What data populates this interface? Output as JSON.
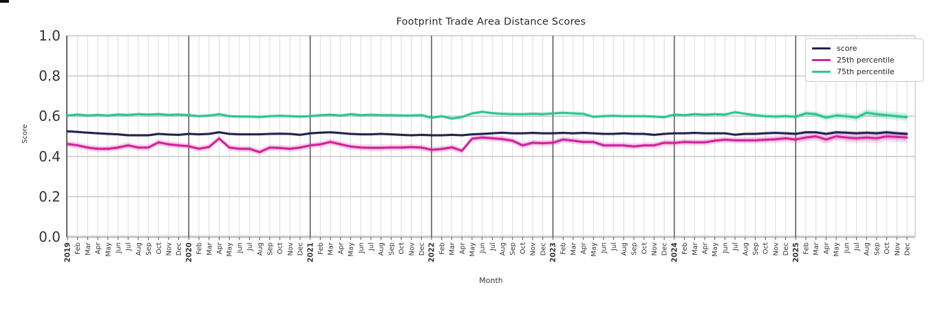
{
  "title": "Footprint Trade Area Distance Scores",
  "axes": {
    "ylabel": "Score",
    "xlabel": "Month"
  },
  "legend": {
    "position": "upper right",
    "items": [
      {
        "label": "score",
        "color": "#22224f"
      },
      {
        "label": "25th percentile",
        "color": "#d2219a"
      },
      {
        "label": "75th percentile",
        "color": "#2bc492"
      }
    ]
  },
  "chart_data": {
    "type": "line",
    "title": "Footprint Trade Area Distance Scores",
    "xlabel": "Month",
    "ylabel": "Score",
    "ylim": [
      0.0,
      1.0
    ],
    "yticks": [
      0.0,
      0.2,
      0.4,
      0.6,
      0.8,
      1.0
    ],
    "grid": true,
    "legend_position": "upper right",
    "year_line_indices": [
      12,
      24,
      36,
      48,
      60,
      72
    ],
    "x_labels": [
      "2019",
      "Feb",
      "Mar",
      "Apr",
      "May",
      "Jun",
      "Jul",
      "Aug",
      "Sep",
      "Oct",
      "Nov",
      "Dec",
      "2020",
      "Feb",
      "Mar",
      "Apr",
      "May",
      "Jun",
      "Jul",
      "Aug",
      "Sep",
      "Oct",
      "Nov",
      "Dec",
      "2021",
      "Feb",
      "Mar",
      "Apr",
      "May",
      "Jun",
      "Jul",
      "Aug",
      "Sep",
      "Oct",
      "Nov",
      "Dec",
      "2022",
      "Feb",
      "Mar",
      "Apr",
      "May",
      "Jun",
      "Jul",
      "Aug",
      "Sep",
      "Oct",
      "Nov",
      "Dec",
      "2023",
      "Feb",
      "Mar",
      "Apr",
      "May",
      "Jun",
      "Jul",
      "Aug",
      "Sep",
      "Oct",
      "Nov",
      "Dec",
      "2024",
      "Feb",
      "Mar",
      "Apr",
      "May",
      "Jun",
      "Jul",
      "Aug",
      "Sep",
      "Oct",
      "Nov",
      "Dec",
      "2025",
      "Feb",
      "Mar",
      "Apr",
      "May",
      "Jun",
      "Jul",
      "Aug",
      "Sep",
      "Oct",
      "Nov",
      "Dec"
    ],
    "series": [
      {
        "name": "score",
        "color": "#22224f",
        "band": {
          "base": 0.007,
          "end": 0.011,
          "widen_from": 66
        },
        "values": [
          0.525,
          0.522,
          0.518,
          0.515,
          0.512,
          0.51,
          0.505,
          0.505,
          0.505,
          0.512,
          0.509,
          0.507,
          0.512,
          0.51,
          0.512,
          0.52,
          0.512,
          0.51,
          0.51,
          0.51,
          0.512,
          0.513,
          0.512,
          0.507,
          0.515,
          0.518,
          0.52,
          0.516,
          0.512,
          0.51,
          0.51,
          0.512,
          0.51,
          0.507,
          0.505,
          0.507,
          0.505,
          0.505,
          0.507,
          0.505,
          0.51,
          0.512,
          0.515,
          0.518,
          0.515,
          0.515,
          0.517,
          0.515,
          0.515,
          0.517,
          0.515,
          0.517,
          0.515,
          0.512,
          0.512,
          0.515,
          0.512,
          0.512,
          0.507,
          0.512,
          0.515,
          0.515,
          0.517,
          0.515,
          0.515,
          0.515,
          0.508,
          0.512,
          0.512,
          0.515,
          0.517,
          0.515,
          0.512,
          0.52,
          0.52,
          0.512,
          0.52,
          0.518,
          0.515,
          0.518,
          0.515,
          0.52,
          0.515,
          0.512
        ]
      },
      {
        "name": "25th percentile",
        "color": "#d2219a",
        "band": {
          "base": 0.016,
          "end": 0.026,
          "widen_from": 66
        },
        "values": [
          0.462,
          0.455,
          0.444,
          0.438,
          0.438,
          0.444,
          0.455,
          0.444,
          0.444,
          0.47,
          0.46,
          0.455,
          0.451,
          0.438,
          0.447,
          0.489,
          0.444,
          0.438,
          0.438,
          0.421,
          0.444,
          0.442,
          0.438,
          0.444,
          0.455,
          0.46,
          0.472,
          0.46,
          0.449,
          0.444,
          0.443,
          0.443,
          0.444,
          0.444,
          0.446,
          0.444,
          0.433,
          0.437,
          0.445,
          0.428,
          0.488,
          0.494,
          0.49,
          0.486,
          0.478,
          0.455,
          0.468,
          0.466,
          0.468,
          0.484,
          0.478,
          0.472,
          0.472,
          0.455,
          0.455,
          0.455,
          0.45,
          0.455,
          0.455,
          0.468,
          0.467,
          0.472,
          0.47,
          0.47,
          0.478,
          0.483,
          0.48,
          0.48,
          0.48,
          0.483,
          0.485,
          0.49,
          0.484,
          0.494,
          0.5,
          0.484,
          0.5,
          0.494,
          0.49,
          0.494,
          0.49,
          0.5,
          0.497,
          0.494
        ]
      },
      {
        "name": "75th percentile",
        "color": "#2bc492",
        "band": {
          "base": 0.01,
          "end": 0.022,
          "widen_from": 66
        },
        "values": [
          0.603,
          0.608,
          0.603,
          0.606,
          0.603,
          0.608,
          0.606,
          0.61,
          0.608,
          0.61,
          0.606,
          0.608,
          0.605,
          0.6,
          0.603,
          0.61,
          0.6,
          0.598,
          0.598,
          0.596,
          0.6,
          0.602,
          0.6,
          0.598,
          0.6,
          0.605,
          0.607,
          0.603,
          0.61,
          0.605,
          0.607,
          0.605,
          0.605,
          0.603,
          0.603,
          0.605,
          0.592,
          0.6,
          0.588,
          0.596,
          0.614,
          0.622,
          0.615,
          0.612,
          0.61,
          0.61,
          0.612,
          0.61,
          0.614,
          0.617,
          0.614,
          0.612,
          0.597,
          0.6,
          0.602,
          0.6,
          0.6,
          0.6,
          0.598,
          0.595,
          0.608,
          0.605,
          0.61,
          0.607,
          0.61,
          0.608,
          0.62,
          0.612,
          0.605,
          0.6,
          0.598,
          0.6,
          0.597,
          0.614,
          0.61,
          0.593,
          0.603,
          0.6,
          0.593,
          0.617,
          0.61,
          0.605,
          0.6,
          0.595
        ]
      }
    ]
  }
}
